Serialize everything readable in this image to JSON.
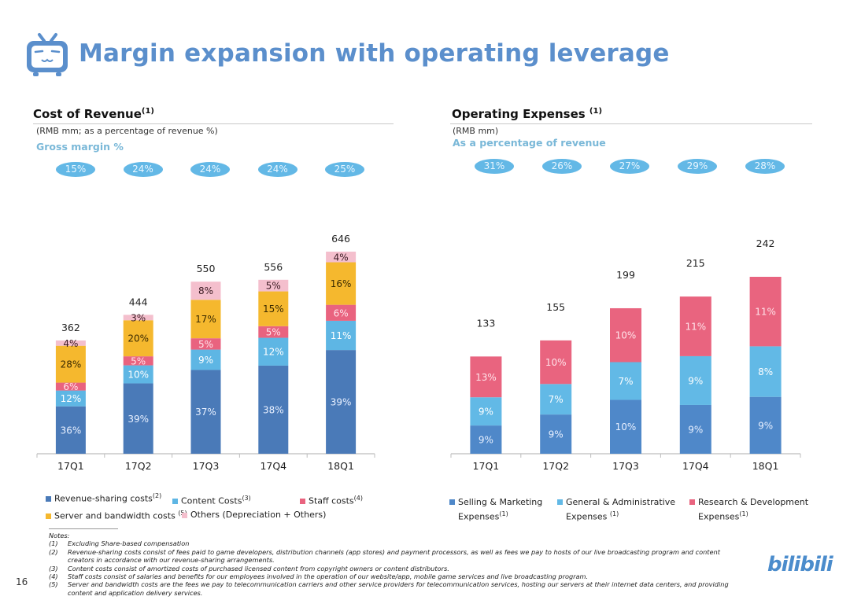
{
  "header": {
    "title": "Margin expansion with operating leverage",
    "logo_icon": "bilibili-tv-icon"
  },
  "left_panel": {
    "title": "Cost of Revenue",
    "title_note": "(1)",
    "unit": "(RMB mm; as a percentage of revenue %)",
    "accent_label": "Gross  margin  %",
    "pills": [
      "15%",
      "24%",
      "24%",
      "24%",
      "25%"
    ]
  },
  "right_panel": {
    "title": "Operating Expenses",
    "title_note": "(1)",
    "unit": "(RMB mm)",
    "accent_label": "As a percentage of revenue",
    "pills": [
      "31%",
      "26%",
      "27%",
      "29%",
      "28%"
    ]
  },
  "chart_data": [
    {
      "type": "bar",
      "stacked": true,
      "title": "Cost of Revenue",
      "categories": [
        "17Q1",
        "17Q2",
        "17Q3",
        "17Q4",
        "18Q1"
      ],
      "totals": [
        362,
        444,
        550,
        556,
        646
      ],
      "total_labels": [
        "362",
        "444",
        "550",
        "556",
        "646"
      ],
      "ylabel": "RMB mm",
      "ylim": [
        0,
        646
      ],
      "grid": false,
      "legend_position": "bottom",
      "series": [
        {
          "name": "Revenue-sharing costs",
          "note": "(2)",
          "color": "#4a7ab8",
          "label_color": "#e8f0ff",
          "values": [
            36,
            39,
            37,
            38,
            39
          ]
        },
        {
          "name": "Content Costs",
          "note": "(3)",
          "color": "#5eb6e4",
          "label_color": "#ffffff",
          "values": [
            12,
            10,
            9,
            12,
            11
          ]
        },
        {
          "name": "Staff costs",
          "note": "(4)",
          "color": "#e9637f",
          "label_color": "#ffe3ea",
          "values": [
            6,
            5,
            5,
            5,
            6
          ]
        },
        {
          "name": "Server and bandwidth costs",
          "note": "(5)",
          "color": "#f5b82e",
          "label_color": "#3a2a00",
          "values": [
            28,
            20,
            17,
            15,
            16
          ]
        },
        {
          "name": "Others (Depreciation + Others)",
          "note": "",
          "color": "#f4bfcd",
          "label_color": "#3a1a22",
          "values": [
            4,
            3,
            8,
            5,
            4
          ]
        }
      ],
      "value_suffix": "%"
    },
    {
      "type": "bar",
      "stacked": true,
      "title": "Operating Expenses",
      "categories": [
        "17Q1",
        "17Q2",
        "17Q3",
        "17Q4",
        "18Q1"
      ],
      "totals": [
        133,
        155,
        199,
        215,
        242
      ],
      "total_labels": [
        "133",
        "155",
        "199",
        "215",
        "242"
      ],
      "ylabel": "RMB mm",
      "ylim": [
        0,
        242
      ],
      "grid": false,
      "legend_position": "bottom",
      "series": [
        {
          "name": "Selling & Marketing Expenses",
          "note": "(1)",
          "color": "#4f88c9",
          "label_color": "#e8f0ff",
          "values": [
            9,
            9,
            10,
            9,
            9
          ]
        },
        {
          "name": "General & Administrative Expenses",
          "note": "(1)",
          "color": "#62b9e6",
          "label_color": "#ffffff",
          "values": [
            9,
            7,
            7,
            9,
            8
          ]
        },
        {
          "name": "Research & Development Expenses",
          "note": "(1)",
          "color": "#e9647f",
          "label_color": "#ffe3ea",
          "values": [
            13,
            10,
            10,
            11,
            11
          ]
        }
      ],
      "value_suffix": "%"
    }
  ],
  "left_legend": [
    {
      "label": "Revenue-sharing costs",
      "note": "(2)",
      "icon": "blue-square-icon"
    },
    {
      "label": "Content Costs",
      "note": "(3)",
      "icon": "light-blue-square-icon"
    },
    {
      "label": "Staff costs",
      "note": "(4)",
      "icon": "pink-square-icon"
    },
    {
      "label": "Server and bandwidth costs",
      "note": "(5)",
      "icon": "yellow-square-icon"
    },
    {
      "label": "Others (Depreciation + Others)",
      "note": "",
      "icon": "light-pink-square-icon"
    }
  ],
  "right_legend": [
    {
      "line1": "Selling & Marketing",
      "line2": "Expenses",
      "note": "(1)"
    },
    {
      "line1": "General & Administrative",
      "line2": "Expenses",
      "note": "(1)"
    },
    {
      "line1": "Research & Development",
      "line2": "Expenses",
      "note": "(1)"
    }
  ],
  "notes": {
    "heading": "Notes:",
    "items": [
      {
        "num": "(1)",
        "lines": [
          "Excluding Share-based compensation"
        ]
      },
      {
        "num": "(2)",
        "lines": [
          "Revenue-sharing costs consist of fees paid to game developers, distribution channels (app stores) and payment processors, as well as fees we pay to hosts of our live broadcasting program and content",
          "creators in accordance with our revenue-sharing arrangements."
        ]
      },
      {
        "num": "(3)",
        "lines": [
          "Content costs consist of amortized costs of purchased licensed content from copyright owners or content distributors."
        ]
      },
      {
        "num": "(4)",
        "lines": [
          "Staff costs consist of salaries and benefits for our employees involved in the operation of our website/app, mobile game services and live broadcasting program."
        ]
      },
      {
        "num": "(5)",
        "lines": [
          "Server and bandwidth costs are the fees we pay to telecommunication carriers and other service providers for telecommunication services, hosting our servers at their internet data centers, and providing",
          "content and application delivery services."
        ]
      }
    ]
  },
  "footer": {
    "page_number": "16",
    "brand": "bilibili"
  }
}
